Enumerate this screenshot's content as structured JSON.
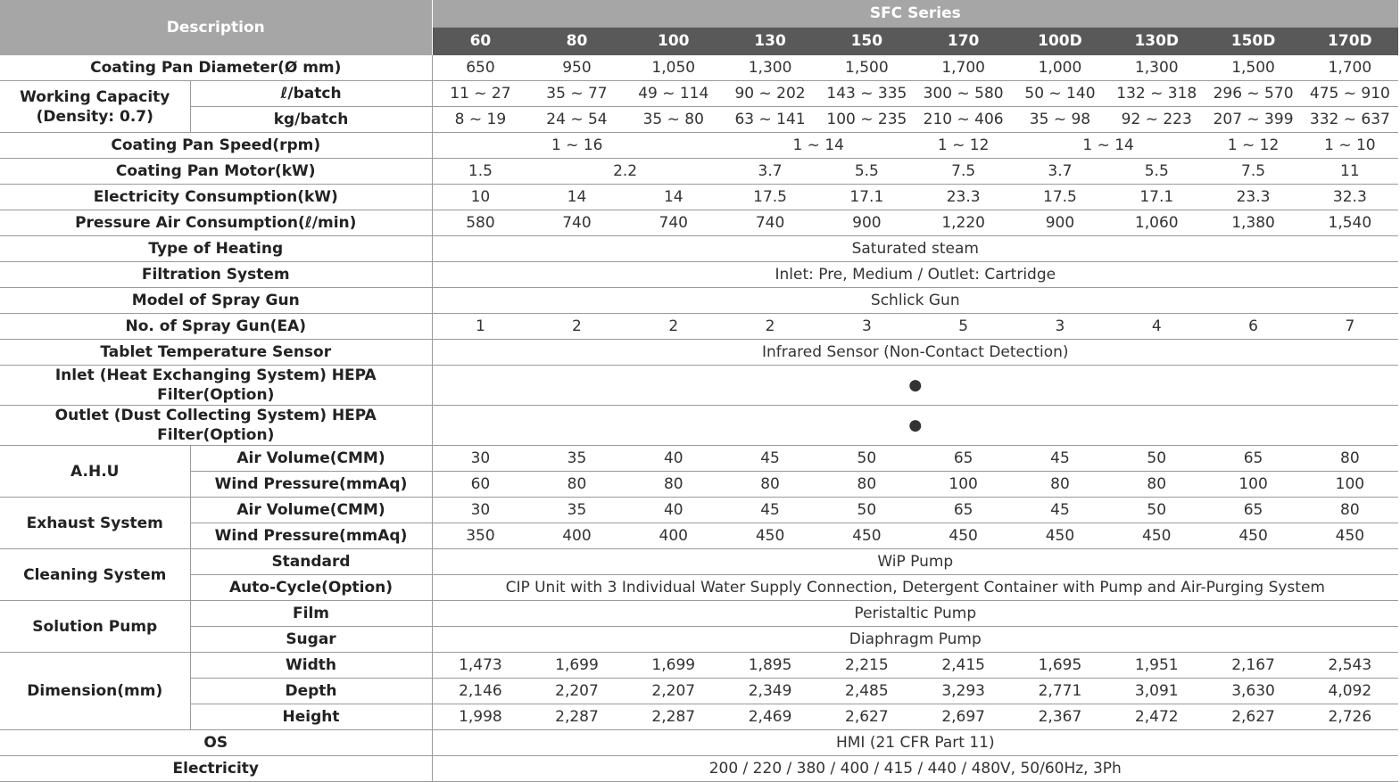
{
  "header": {
    "description": "Description",
    "series": "SFC Series",
    "models": [
      "60",
      "80",
      "100",
      "130",
      "150",
      "170",
      "100D",
      "130D",
      "150D",
      "170D"
    ]
  },
  "groups": [
    {
      "label": "Coating Pan Diameter(Ø mm)",
      "rows": [
        {
          "cells": [
            "650",
            "950",
            "1,050",
            "1,300",
            "1,500",
            "1,700",
            "1,000",
            "1,300",
            "1,500",
            "1,700"
          ]
        }
      ]
    },
    {
      "label": "Working Capacity\n(Density: 0.7)",
      "rows": [
        {
          "label": "ℓ/batch",
          "cells": [
            "11 ~ 27",
            "35 ~ 77",
            "49 ~ 114",
            "90 ~ 202",
            "143 ~ 335",
            "300 ~ 580",
            "50 ~ 140",
            "132 ~ 318",
            "296 ~ 570",
            "475 ~ 910"
          ]
        },
        {
          "label": "kg/batch",
          "cells": [
            "8 ~ 19",
            "24 ~ 54",
            "35 ~ 80",
            "63 ~ 141",
            "100 ~ 235",
            "210 ~ 406",
            "35 ~ 98",
            "92 ~ 223",
            "207 ~ 399",
            "332 ~ 637"
          ]
        }
      ]
    },
    {
      "label": "Coating Pan Speed(rpm)",
      "rows": [
        {
          "cells": [
            "1 ~ 16",
            "1 ~ 14",
            "1 ~ 12",
            "1 ~ 14",
            "1 ~ 12",
            "1 ~ 10"
          ]
        }
      ]
    },
    {
      "label": "Coating Pan Motor(kW)",
      "rows": [
        {
          "cells": [
            "1.5",
            "2.2",
            "3.7",
            "5.5",
            "7.5",
            "3.7",
            "5.5",
            "7.5",
            "11"
          ]
        }
      ]
    },
    {
      "label": "Electricity Consumption(kW)",
      "rows": [
        {
          "cells": [
            "10",
            "14",
            "14",
            "17.5",
            "17.1",
            "23.3",
            "17.5",
            "17.1",
            "23.3",
            "32.3"
          ]
        }
      ]
    },
    {
      "label": "Pressure Air Consumption(ℓ/min)",
      "rows": [
        {
          "cells": [
            "580",
            "740",
            "740",
            "740",
            "900",
            "1,220",
            "900",
            "1,060",
            "1,380",
            "1,540"
          ]
        }
      ]
    },
    {
      "label": "Type of Heating",
      "rows": [
        {
          "cells": [
            "Saturated steam"
          ]
        }
      ]
    },
    {
      "label": "Filtration System",
      "rows": [
        {
          "cells": [
            "Inlet: Pre, Medium / Outlet: Cartridge"
          ]
        }
      ]
    },
    {
      "label": "Model of Spray Gun",
      "rows": [
        {
          "cells": [
            "Schlick Gun"
          ]
        }
      ]
    },
    {
      "label": "No. of Spray Gun(EA)",
      "rows": [
        {
          "cells": [
            "1",
            "2",
            "2",
            "2",
            "3",
            "5",
            "3",
            "4",
            "6",
            "7"
          ]
        }
      ]
    },
    {
      "label": "Tablet Temperature Sensor",
      "rows": [
        {
          "cells": [
            "Infrared Sensor (Non-Contact Detection)"
          ]
        }
      ]
    },
    {
      "label": "Inlet (Heat Exchanging System)  HEPA Filter(Option)",
      "rows": [
        {
          "cells": [
            "●"
          ]
        }
      ]
    },
    {
      "label": "Outlet (Dust Collecting System) HEPA Filter(Option)",
      "rows": [
        {
          "cells": [
            "●"
          ]
        }
      ]
    },
    {
      "label": "A.H.U",
      "rows": [
        {
          "label": "Air Volume(CMM)",
          "cells": [
            "30",
            "35",
            "40",
            "45",
            "50",
            "65",
            "45",
            "50",
            "65",
            "80"
          ]
        },
        {
          "label": "Wind Pressure(mmAq)",
          "cells": [
            "60",
            "80",
            "80",
            "80",
            "80",
            "100",
            "80",
            "80",
            "100",
            "100"
          ]
        }
      ]
    },
    {
      "label": "Exhaust System",
      "rows": [
        {
          "label": "Air Volume(CMM)",
          "cells": [
            "30",
            "35",
            "40",
            "45",
            "50",
            "65",
            "45",
            "50",
            "65",
            "80"
          ]
        },
        {
          "label": "Wind Pressure(mmAq)",
          "cells": [
            "350",
            "400",
            "400",
            "450",
            "450",
            "450",
            "450",
            "450",
            "450",
            "450"
          ]
        }
      ]
    },
    {
      "label": "Cleaning System",
      "rows": [
        {
          "label": "Standard",
          "cells": [
            "WiP Pump"
          ]
        },
        {
          "label": "Auto-Cycle(Option)",
          "cells": [
            "CIP Unit with 3 Individual Water Supply Connection, Detergent Container with Pump and Air-Purging System"
          ]
        }
      ]
    },
    {
      "label": "Solution Pump",
      "rows": [
        {
          "label": "Film",
          "cells": [
            "Peristaltic Pump"
          ]
        },
        {
          "label": "Sugar",
          "cells": [
            "Diaphragm Pump"
          ]
        }
      ]
    },
    {
      "label": "Dimension(mm)",
      "rows": [
        {
          "label": "Width",
          "cells": [
            "1,473",
            "1,699",
            "1,699",
            "1,895",
            "2,215",
            "2,415",
            "1,695",
            "1,951",
            "2,167",
            "2,543"
          ]
        },
        {
          "label": "Depth",
          "cells": [
            "2,146",
            "2,207",
            "2,207",
            "2,349",
            "2,485",
            "3,293",
            "2,771",
            "3,091",
            "3,630",
            "4,092"
          ]
        },
        {
          "label": "Height",
          "cells": [
            "1,998",
            "2,287",
            "2,287",
            "2,469",
            "2,627",
            "2,697",
            "2,367",
            "2,472",
            "2,627",
            "2,726"
          ]
        }
      ]
    },
    {
      "label": "OS",
      "rows": [
        {
          "cells": [
            "HMI (21 CFR Part 11)"
          ]
        }
      ]
    },
    {
      "label": "Electricity",
      "rows": [
        {
          "cells": [
            "200 / 220 / 380 / 400 / 415 / 440 / 480V, 50/60Hz, 3Ph"
          ]
        }
      ]
    }
  ]
}
